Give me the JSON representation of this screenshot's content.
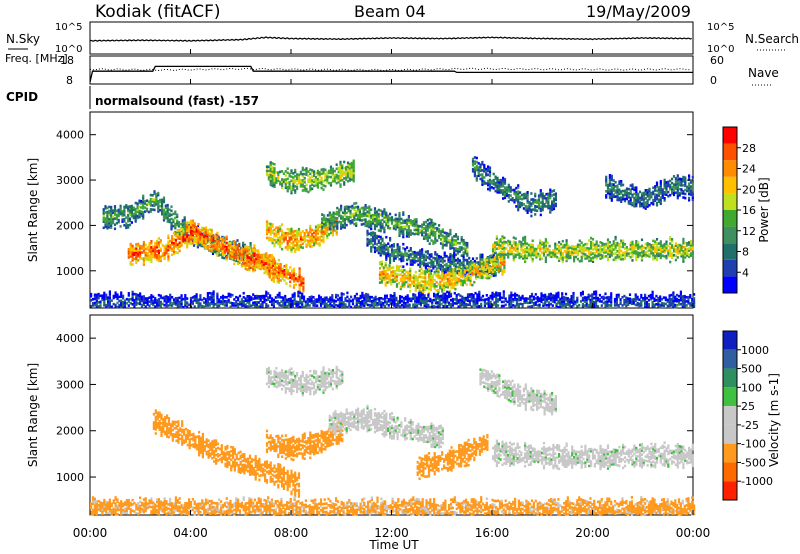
{
  "header": {
    "station": "Kodiak (fitACF)",
    "beam": "Beam 04",
    "date": "19/May/2009",
    "cpid_label": "CPID",
    "cpid_value": "normalsound (fast) -157"
  },
  "colors": {
    "velocity_gray": "#c8c8c8",
    "power_scale": [
      "#0000ff",
      "#1f3fb0",
      "#1f6f6a",
      "#3f8f5f",
      "#3faa2f",
      "#bfdf1f",
      "#ffc000",
      "#ff8c00",
      "#ff5000",
      "#ff0000"
    ],
    "velocity_scale": [
      "#1020c0",
      "#2f5fa0",
      "#2f8f5f",
      "#40c040",
      "#c8c8c8",
      "#c8c8c8",
      "#ff9a1f",
      "#ff6a00",
      "#ff2000"
    ]
  },
  "chart_data": [
    {
      "type": "line",
      "name": "nsky-nsearch-panel",
      "left_label": "N.Sky",
      "right_label": "N.Search",
      "left_ticks": [
        "10^5",
        "10^0"
      ],
      "right_ticks": [
        "10^5",
        "10^0"
      ],
      "series": [
        {
          "name": "N.Sky",
          "style": "solid",
          "x": [
            0,
            2,
            4,
            6,
            7,
            8,
            10,
            12,
            14,
            16,
            18,
            20,
            22,
            24
          ],
          "y": [
            2.0,
            2.1,
            2.0,
            2.2,
            2.6,
            2.4,
            2.3,
            2.5,
            2.4,
            2.6,
            2.4,
            2.3,
            2.5,
            2.4
          ]
        }
      ]
    },
    {
      "type": "line",
      "name": "frequency-nave-panel",
      "left_label": "Freq. [MHz]",
      "right_label": "Nave",
      "left_ticks": [
        18,
        8
      ],
      "right_ticks": [
        60,
        0
      ],
      "series": [
        {
          "name": "Freq.",
          "style": "solid",
          "x": [
            0,
            0.1,
            2.5,
            2.6,
            6.4,
            6.5,
            14.5,
            14.6,
            24
          ],
          "y": [
            8,
            12.5,
            12.5,
            14.5,
            14.5,
            12.5,
            12.5,
            12,
            12
          ]
        },
        {
          "name": "Nave",
          "style": "dotted",
          "x": [
            0,
            3,
            6,
            9,
            12,
            15,
            18,
            21,
            24
          ],
          "y": [
            32,
            30,
            33,
            31,
            30,
            33,
            32,
            31,
            32
          ]
        }
      ]
    },
    {
      "type": "heatmap",
      "name": "power-panel",
      "ylabel": "Slant Range [km]",
      "ylim": [
        180,
        4500
      ],
      "yticks": [
        1000,
        2000,
        3000,
        4000
      ],
      "xlim": [
        0,
        24
      ],
      "colorbar": {
        "label": "Power [dB]",
        "ticks": [
          4,
          8,
          12,
          16,
          20,
          24,
          28
        ],
        "range": [
          0,
          32
        ]
      },
      "bands": [
        {
          "x": [
            0.5,
            1.5,
            2.6,
            3.5,
            4.5,
            5.5,
            6.5
          ],
          "y": [
            2200,
            2250,
            2600,
            2000,
            1700,
            1500,
            1350
          ],
          "value": 13
        },
        {
          "x": [
            1.5,
            3,
            4,
            5,
            6,
            7,
            7.5
          ],
          "y": [
            1400,
            1500,
            1900,
            1650,
            1350,
            1200,
            950
          ],
          "value": 27
        },
        {
          "x": [
            6.5,
            7.2,
            8,
            8.5
          ],
          "y": [
            1350,
            1100,
            900,
            750
          ],
          "value": 27
        },
        {
          "x": [
            7,
            8,
            9,
            9.8
          ],
          "y": [
            1900,
            1700,
            1800,
            2100
          ],
          "value": 24
        },
        {
          "x": [
            9.2,
            10.5,
            12,
            13.5,
            15
          ],
          "y": [
            2100,
            2300,
            2100,
            1900,
            1500
          ],
          "value": 14
        },
        {
          "x": [
            11,
            12,
            13.5,
            15,
            16.2
          ],
          "y": [
            1750,
            1450,
            1250,
            1100,
            1200
          ],
          "value": 10
        },
        {
          "x": [
            11.5,
            13,
            14.5,
            15.5,
            16.5
          ],
          "y": [
            1000,
            800,
            850,
            1050,
            1250
          ],
          "value": 22
        },
        {
          "x": [
            16,
            17.5,
            19,
            20.5,
            22,
            24
          ],
          "y": [
            1550,
            1500,
            1450,
            1500,
            1500,
            1500
          ],
          "value": 19
        },
        {
          "x": [
            15.2,
            16,
            16.8,
            17.5,
            18.5
          ],
          "y": [
            3350,
            3000,
            2700,
            2500,
            2600
          ],
          "value": 11
        },
        {
          "x": [
            7,
            8,
            9.5,
            10.5
          ],
          "y": [
            3200,
            3000,
            3100,
            3250
          ],
          "value": 17
        },
        {
          "x": [
            20.5,
            22,
            23.2,
            24
          ],
          "y": [
            2900,
            2600,
            2900,
            2850
          ],
          "value": 10
        },
        {
          "x": [
            0,
            6,
            12,
            18,
            24
          ],
          "y": [
            300,
            300,
            300,
            300,
            300
          ],
          "value": 6
        }
      ]
    },
    {
      "type": "heatmap",
      "name": "velocity-panel",
      "ylabel": "Slant Range [km]",
      "xlabel": "Time UT",
      "ylim": [
        180,
        4500
      ],
      "yticks": [
        1000,
        2000,
        3000,
        4000
      ],
      "xlim": [
        0,
        24
      ],
      "xticks": [
        "00:00",
        "04:00",
        "08:00",
        "12:00",
        "16:00",
        "20:00",
        "00:00"
      ],
      "colorbar": {
        "label": "Velocity [m s-1]",
        "ticks": [
          "1000",
          "500",
          "100",
          "25",
          "-25",
          "-100",
          "-500",
          "-1000"
        ]
      },
      "bands": [
        {
          "x": [
            2.5,
            3.5,
            4.5,
            5.5,
            6.5,
            7.5,
            8.3
          ],
          "y": [
            2250,
            2000,
            1700,
            1450,
            1250,
            1050,
            850
          ],
          "value": "-300"
        },
        {
          "x": [
            7,
            8,
            9,
            10
          ],
          "y": [
            1800,
            1650,
            1750,
            2050
          ],
          "value": "-200"
        },
        {
          "x": [
            13,
            14,
            15,
            15.8
          ],
          "y": [
            1250,
            1350,
            1550,
            1800
          ],
          "value": "-250"
        },
        {
          "x": [
            16,
            18,
            20,
            22,
            24
          ],
          "y": [
            1550,
            1500,
            1450,
            1500,
            1500
          ],
          "value": "0"
        },
        {
          "x": [
            9.5,
            11,
            12.5,
            14
          ],
          "y": [
            2200,
            2300,
            2050,
            1900
          ],
          "value": "0"
        },
        {
          "x": [
            0,
            6,
            12,
            18,
            24
          ],
          "y": [
            320,
            320,
            320,
            320,
            320
          ],
          "value": "-120"
        },
        {
          "x": [
            7,
            8.5,
            10
          ],
          "y": [
            3200,
            3050,
            3200
          ],
          "value": "0"
        },
        {
          "x": [
            15.5,
            17,
            18.5
          ],
          "y": [
            3200,
            2800,
            2600
          ],
          "value": "0"
        }
      ]
    }
  ]
}
